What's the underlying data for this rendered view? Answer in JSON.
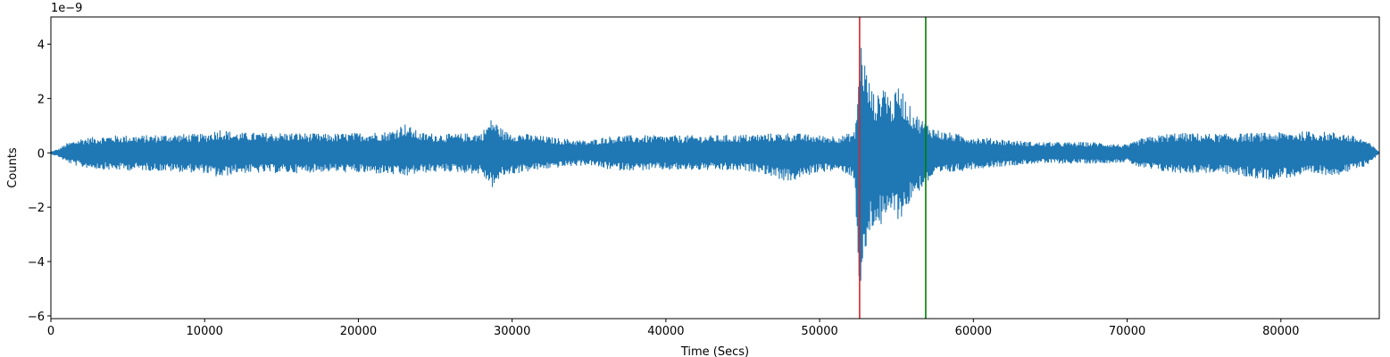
{
  "chart_data": {
    "type": "line",
    "xlabel": "Time (Secs)",
    "ylabel": "Counts",
    "offset_text": "1e−9",
    "xlim": [
      0,
      86400
    ],
    "ylim": [
      -6.1,
      5.0
    ],
    "y_scale_factor": 1e-09,
    "xticks": [
      0,
      10000,
      20000,
      30000,
      40000,
      50000,
      60000,
      70000,
      80000
    ],
    "xtick_labels": [
      "0",
      "10000",
      "20000",
      "30000",
      "40000",
      "50000",
      "60000",
      "70000",
      "80000"
    ],
    "yticks": [
      -6,
      -4,
      -2,
      0,
      2,
      4
    ],
    "ytick_labels": [
      "−6",
      "−4",
      "−2",
      "0",
      "2",
      "4"
    ],
    "grid": false,
    "series": [
      {
        "color": "#1f77b4",
        "envelope": {
          "x": [
            0,
            500,
            1000,
            2000,
            4000,
            6000,
            8000,
            10000,
            11000,
            12000,
            14000,
            16000,
            18000,
            20000,
            22000,
            23000,
            24000,
            26000,
            28000,
            28700,
            29500,
            31000,
            33000,
            35000,
            36000,
            37000,
            40000,
            43000,
            46000,
            48000,
            50000,
            51500,
            52300,
            52500,
            52600,
            52800,
            53000,
            53300,
            53700,
            54200,
            54700,
            55200,
            55600,
            56000,
            56500,
            57000,
            57500,
            58000,
            59000,
            60000,
            62000,
            64000,
            66000,
            68000,
            70000,
            71000,
            73000,
            76000,
            79000,
            82000,
            84000,
            85500,
            86400
          ],
          "upper": [
            0.05,
            0.15,
            0.35,
            0.55,
            0.65,
            0.65,
            0.7,
            0.7,
            0.9,
            0.75,
            0.75,
            0.75,
            0.7,
            0.75,
            0.8,
            1.1,
            0.75,
            0.7,
            0.75,
            1.3,
            0.8,
            0.7,
            0.55,
            0.45,
            0.6,
            0.65,
            0.65,
            0.65,
            0.7,
            0.75,
            0.65,
            0.65,
            0.8,
            2.5,
            4.5,
            4.0,
            3.2,
            2.5,
            2.0,
            2.7,
            1.9,
            2.6,
            2.0,
            1.6,
            1.3,
            1.1,
            0.9,
            0.8,
            0.7,
            0.6,
            0.5,
            0.4,
            0.4,
            0.4,
            0.3,
            0.55,
            0.75,
            0.7,
            0.75,
            0.8,
            0.75,
            0.5,
            0.05
          ],
          "lower": [
            -0.05,
            -0.15,
            -0.35,
            -0.55,
            -0.65,
            -0.65,
            -0.7,
            -0.75,
            -0.95,
            -0.75,
            -0.75,
            -0.75,
            -0.7,
            -0.75,
            -0.8,
            -0.9,
            -0.75,
            -0.7,
            -0.8,
            -1.3,
            -0.85,
            -0.7,
            -0.55,
            -0.45,
            -0.6,
            -0.65,
            -0.65,
            -0.65,
            -0.7,
            -1.1,
            -0.7,
            -0.7,
            -1.0,
            -4.5,
            -5.6,
            -4.8,
            -3.8,
            -3.0,
            -2.6,
            -2.9,
            -2.2,
            -2.5,
            -2.2,
            -1.7,
            -1.4,
            -1.1,
            -0.9,
            -0.8,
            -0.7,
            -0.6,
            -0.5,
            -0.4,
            -0.4,
            -0.4,
            -0.35,
            -0.6,
            -0.75,
            -0.75,
            -1.0,
            -0.85,
            -0.8,
            -0.5,
            -0.05
          ]
        }
      }
    ],
    "vlines": [
      {
        "x": 52600,
        "color": "#d62728"
      },
      {
        "x": 56900,
        "color": "#008000"
      }
    ]
  }
}
